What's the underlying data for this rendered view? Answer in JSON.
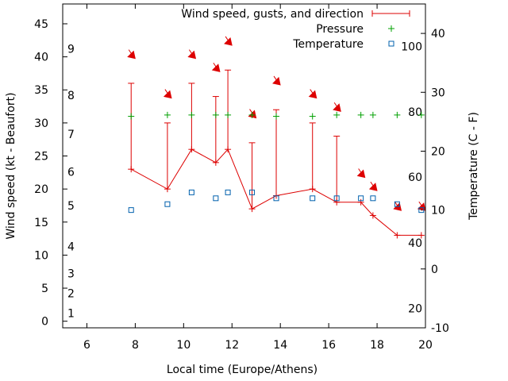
{
  "chart_data": {
    "type": "line",
    "xlabel": "Local time (Europe/Athens)",
    "ylabel": "Wind speed (kt - Beaufort)",
    "y2label": "Temperature (C - F)",
    "xlim": [
      5,
      20
    ],
    "ylim": [
      -1,
      48
    ],
    "y2lim": [
      -10,
      45
    ],
    "x_ticks": [
      6,
      8,
      10,
      12,
      14,
      16,
      18,
      20
    ],
    "y_ticks": [
      0,
      5,
      10,
      15,
      20,
      25,
      30,
      35,
      40,
      45
    ],
    "y2_ticks": [
      -10,
      0,
      10,
      20,
      30,
      40
    ],
    "beaufort_labels": [
      {
        "label": "1",
        "y": 1.2
      },
      {
        "label": "2",
        "y": 4.2
      },
      {
        "label": "3",
        "y": 7.2
      },
      {
        "label": "4",
        "y": 11.3
      },
      {
        "label": "5",
        "y": 17.5
      },
      {
        "label": "6",
        "y": 22.6
      },
      {
        "label": "7",
        "y": 28.3
      },
      {
        "label": "8",
        "y": 34.2
      },
      {
        "label": "9",
        "y": 41.2
      }
    ],
    "fahrenheit_labels": [
      {
        "label": "20",
        "y2": -6.7
      },
      {
        "label": "40",
        "y2": 4.4
      },
      {
        "label": "60",
        "y2": 15.6
      },
      {
        "label": "80",
        "y2": 26.7
      },
      {
        "label": "100",
        "y2": 37.8
      }
    ],
    "legend_position": "top-right",
    "series": [
      {
        "name": "Wind speed, gusts, and direction",
        "color": "#dd0000",
        "x": [
          7.83,
          9.33,
          10.33,
          11.33,
          11.83,
          12.83,
          13.83,
          15.33,
          16.33,
          17.33,
          17.83,
          18.83,
          19.83
        ],
        "speed": [
          23,
          20,
          26,
          24,
          26,
          17,
          19,
          20,
          18,
          18,
          16,
          13,
          13
        ],
        "gust": [
          36,
          30,
          36,
          34,
          38,
          27,
          32,
          30,
          28,
          null,
          null,
          null,
          null
        ],
        "direction_arrow_y": [
          40,
          34,
          40,
          38,
          42,
          31,
          36,
          34,
          32,
          22,
          20,
          17,
          17
        ]
      },
      {
        "name": "Pressure",
        "color": "#00a000",
        "axis": "left",
        "x": [
          7.83,
          9.33,
          10.33,
          11.33,
          11.83,
          12.83,
          13.83,
          15.33,
          16.33,
          17.33,
          17.83,
          18.83,
          19.83
        ],
        "y": [
          31,
          31.2,
          31.2,
          31.2,
          31.2,
          31.2,
          31,
          31,
          31.2,
          31.2,
          31.2,
          31.2,
          31.2
        ]
      },
      {
        "name": "Temperature",
        "color": "#0060ad",
        "axis": "right",
        "x": [
          7.83,
          9.33,
          10.33,
          11.33,
          11.83,
          12.83,
          13.83,
          15.33,
          16.33,
          17.33,
          17.83,
          18.83,
          19.83
        ],
        "y": [
          10,
          11,
          13,
          12,
          13,
          13,
          12,
          12,
          12,
          12,
          12,
          11,
          10
        ]
      }
    ]
  }
}
